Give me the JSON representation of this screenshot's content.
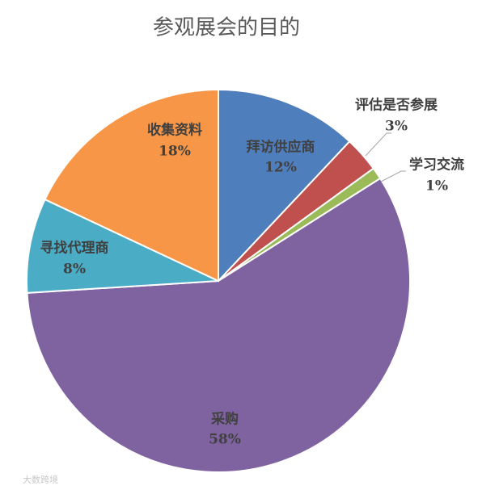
{
  "chart_data": {
    "type": "pie",
    "title": "参观展会的目的",
    "categories": [
      "拜访供应商",
      "评估是否参展",
      "学习交流",
      "采购",
      "寻找代理商",
      "收集资料"
    ],
    "values": [
      12,
      3,
      1,
      58,
      8,
      18
    ],
    "value_labels": [
      "12%",
      "3%",
      "1%",
      "58%",
      "8%",
      "18%"
    ],
    "colors": [
      "#4f7ebc",
      "#c0504d",
      "#9bbb59",
      "#7f62a0",
      "#4bacc6",
      "#f79646"
    ],
    "watermark": "大数跨境"
  }
}
